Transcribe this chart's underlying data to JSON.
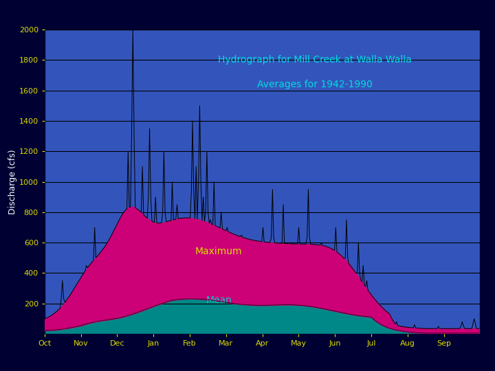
{
  "title_line1": "Hydrograph for Mill Creek at Walla Walla",
  "title_line2": "Averages for 1942-1990",
  "ylabel": "Discharge (cfs)",
  "months": [
    "Oct",
    "Nov",
    "Dec",
    "Jan",
    "Feb",
    "Mar",
    "Apr",
    "May",
    "Jun",
    "Jul",
    "Aug",
    "Sep"
  ],
  "ylim": [
    0,
    2000
  ],
  "yticks": [
    200,
    400,
    600,
    800,
    1000,
    1200,
    1400,
    1600,
    1800,
    2000
  ],
  "background_outer": "#000033",
  "background_plot": "#3355bb",
  "mean_color": "#008888",
  "max_color": "#cc0077",
  "line_color": "#000000",
  "title_color": "#00dddd",
  "tick_color": "#dddd00",
  "ylabel_color": "#ffffff",
  "mean_label_color": "#00cccc",
  "max_label_color": "#dddd00",
  "grid_color": "#000000"
}
